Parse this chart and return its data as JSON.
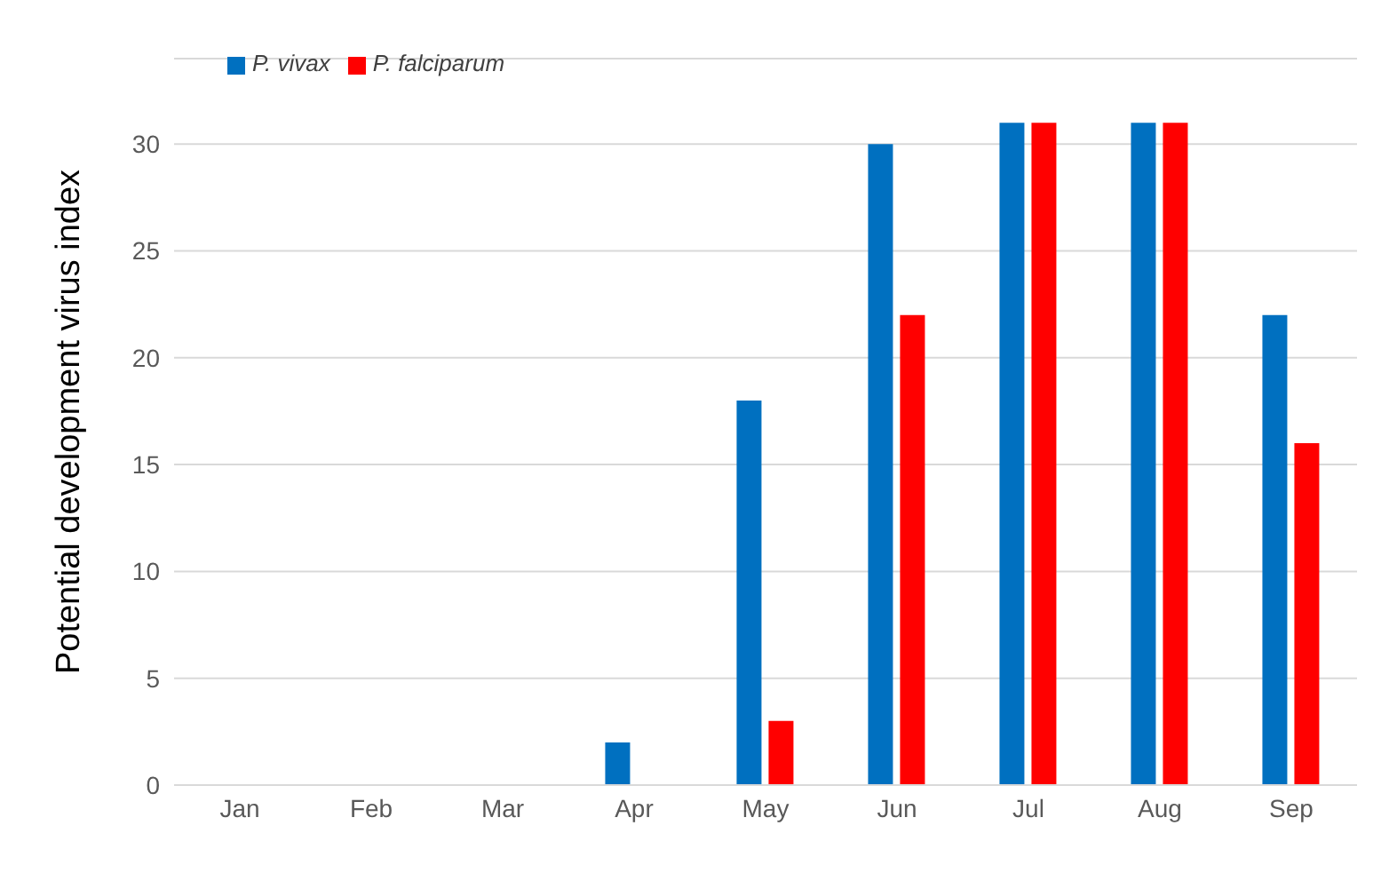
{
  "chart_data": {
    "type": "bar",
    "ylabel": "Potential development virus index",
    "categories": [
      "Jan",
      "Feb",
      "Mar",
      "Apr",
      "May",
      "Jun",
      "Jul",
      "Aug",
      "Sep"
    ],
    "series": [
      {
        "name": "P. vivax",
        "color": "#0070c0",
        "values": [
          0,
          0,
          0,
          2,
          18,
          30,
          31,
          31,
          22
        ]
      },
      {
        "name": "P. falciparum",
        "color": "#ff0000",
        "values": [
          0,
          0,
          0,
          0,
          3,
          22,
          31,
          31,
          16
        ]
      }
    ],
    "ylim": [
      0,
      34
    ],
    "yticks": [
      0,
      5,
      10,
      15,
      20,
      25,
      30
    ],
    "grid": "y",
    "legend": "top left"
  }
}
